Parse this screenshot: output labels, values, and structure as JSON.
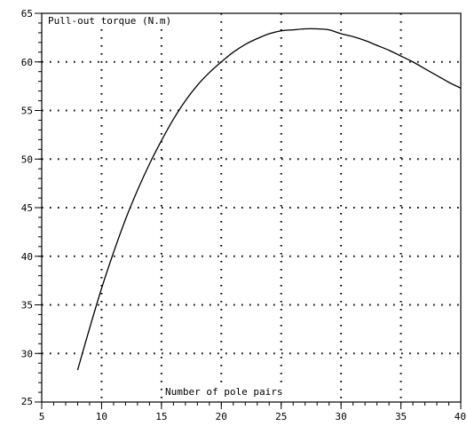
{
  "chart_data": {
    "type": "line",
    "title": "",
    "ylabel": "Pull-out torque (N.m)",
    "xlabel": "Number of pole pairs",
    "xlim": [
      5,
      40
    ],
    "ylim": [
      25,
      65
    ],
    "x_ticks": [
      5,
      10,
      15,
      20,
      25,
      30,
      35,
      40
    ],
    "y_ticks": [
      25,
      30,
      35,
      40,
      45,
      50,
      55,
      60,
      65
    ],
    "x_minor_step": 1,
    "y_minor_step": 1,
    "grid": "dotted",
    "legend": "none",
    "series": [
      {
        "x": [
          8,
          9,
          10,
          11,
          12,
          13,
          14,
          15,
          16,
          17,
          18,
          19,
          20,
          21,
          22,
          23,
          24,
          25,
          26,
          27,
          28,
          29,
          30,
          31,
          32,
          33,
          34,
          35,
          36,
          37,
          38,
          39,
          40
        ],
        "values": [
          28.3,
          32.6,
          36.7,
          40.4,
          43.8,
          46.8,
          49.5,
          51.9,
          54.1,
          56.0,
          57.6,
          58.9,
          60.0,
          61.0,
          61.8,
          62.4,
          62.9,
          63.2,
          63.3,
          63.4,
          63.4,
          63.3,
          62.9,
          62.6,
          62.2,
          61.7,
          61.2,
          60.6,
          60.0,
          59.3,
          58.6,
          57.9,
          57.3
        ],
        "color": "#000000"
      }
    ]
  }
}
